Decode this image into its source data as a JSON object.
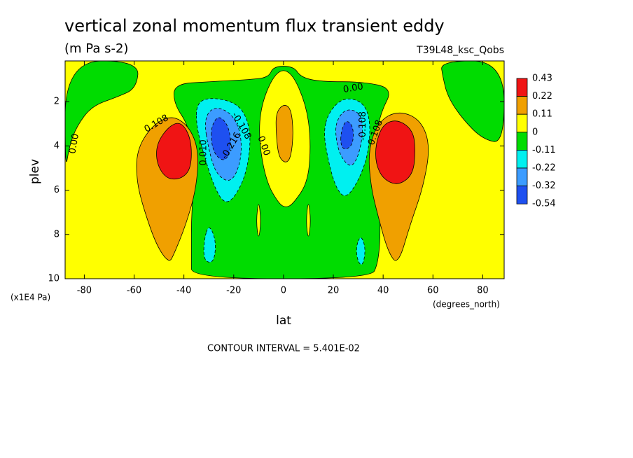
{
  "chart_data": {
    "type": "contour",
    "title": "vertical zonal momentum flux transient eddy",
    "subtitle": "(m Pa s-2)",
    "experiment": "T39L48_ksc_Qobs",
    "xlabel": "lat",
    "xunits": "(degrees_north)",
    "ylabel": "plev",
    "yunits": "(x1E4 Pa)",
    "footer": "CONTOUR INTERVAL = 5.401E-02",
    "xlim": [
      -87.7,
      88.6
    ],
    "ylim": [
      10,
      0.16
    ],
    "xticks": [
      -80,
      -60,
      -40,
      -20,
      0,
      20,
      40,
      60,
      80
    ],
    "yticks": [
      2,
      4,
      6,
      8,
      10
    ],
    "background_level": 0,
    "colorbar": {
      "levels": [
        0.43,
        0.22,
        0.11,
        0,
        -0.11,
        -0.22,
        -0.32,
        -0.54
      ],
      "colors": [
        "#f01414",
        "#f0a000",
        "#ffff00",
        "#00dc00",
        "#00f0f0",
        "#3c9cff",
        "#1e50f0"
      ]
    },
    "regions": [
      {
        "level": -0.11,
        "points": [
          [
            -87.7,
            0.16
          ],
          [
            -58,
            0.16
          ],
          [
            -59,
            1.4
          ],
          [
            -67,
            1.8
          ],
          [
            -77,
            2.2
          ],
          [
            -83,
            3.1
          ],
          [
            -86,
            4
          ],
          [
            -87.7,
            5.2
          ]
        ]
      },
      {
        "level": -0.11,
        "points": [
          [
            63,
            0.16
          ],
          [
            88.6,
            0.16
          ],
          [
            88.6,
            3.9
          ],
          [
            80,
            3.7
          ],
          [
            72,
            2.8
          ],
          [
            66,
            1.8
          ],
          [
            64,
            0.9
          ]
        ]
      },
      {
        "level": -0.11,
        "points": [
          [
            -44,
            1.2
          ],
          [
            -30,
            1.1
          ],
          [
            -13,
            1.0
          ],
          [
            -6,
            0.9
          ],
          [
            -4,
            0.4
          ],
          [
            4,
            0.4
          ],
          [
            7,
            0.9
          ],
          [
            15,
            1.1
          ],
          [
            32,
            1.1
          ],
          [
            44,
            1.4
          ],
          [
            39,
            2.5
          ],
          [
            37,
            3.7
          ],
          [
            38,
            5.6
          ],
          [
            39,
            7.8
          ],
          [
            38,
            9.3
          ],
          [
            35,
            10
          ],
          [
            -37,
            10
          ],
          [
            -37,
            9.1
          ],
          [
            -37,
            6.9
          ],
          [
            -35,
            5.0
          ],
          [
            -38,
            3.1
          ],
          [
            -44,
            2.1
          ]
        ]
      },
      {
        "level": 0,
        "points": [
          [
            -3,
            0.6
          ],
          [
            3,
            0.6
          ],
          [
            9,
            2.1
          ],
          [
            11,
            3.7
          ],
          [
            10,
            5.6
          ],
          [
            4,
            6.6
          ],
          [
            1,
            6.8
          ],
          [
            -2,
            6.6
          ],
          [
            -7,
            5.6
          ],
          [
            -10,
            3.7
          ],
          [
            -9,
            2.1
          ]
        ]
      },
      {
        "level": 0,
        "points": [
          [
            -10,
            6.4
          ],
          [
            -9,
            7.4
          ],
          [
            -10,
            8.3
          ],
          [
            -11,
            7.4
          ]
        ]
      },
      {
        "level": 0,
        "points": [
          [
            10,
            6.4
          ],
          [
            11,
            7.4
          ],
          [
            10,
            8.3
          ],
          [
            9,
            7.4
          ]
        ]
      },
      {
        "level": 0.11,
        "points": [
          [
            -3,
            2.5
          ],
          [
            0,
            2.1
          ],
          [
            3,
            2.3
          ],
          [
            4,
            3.4
          ],
          [
            3,
            4.5
          ],
          [
            1,
            4.8
          ],
          [
            -2,
            4.5
          ],
          [
            -3,
            3.4
          ]
        ]
      },
      {
        "level": 0.11,
        "points": [
          [
            -59,
            4.2
          ],
          [
            -53,
            3.1
          ],
          [
            -45,
            2.6
          ],
          [
            -38,
            3.1
          ],
          [
            -34,
            4.2
          ],
          [
            -35,
            5.9
          ],
          [
            -39,
            7.5
          ],
          [
            -44,
            8.9
          ],
          [
            -46,
            9.3
          ],
          [
            -51,
            8.5
          ],
          [
            -56,
            6.9
          ],
          [
            -59,
            5.6
          ]
        ]
      },
      {
        "level": 0.22,
        "points": [
          [
            -51,
            3.9
          ],
          [
            -46,
            3.1
          ],
          [
            -41,
            2.9
          ],
          [
            -37,
            3.7
          ],
          [
            -37,
            5.0
          ],
          [
            -41,
            5.5
          ],
          [
            -47,
            5.5
          ],
          [
            -51,
            4.8
          ]
        ]
      },
      {
        "level": 0.11,
        "points": [
          [
            34,
            4.2
          ],
          [
            38,
            2.9
          ],
          [
            46,
            2.4
          ],
          [
            55,
            2.8
          ],
          [
            59,
            4.0
          ],
          [
            56,
            5.9
          ],
          [
            51,
            7.5
          ],
          [
            46,
            9.4
          ],
          [
            42,
            8.8
          ],
          [
            38,
            7.2
          ],
          [
            35,
            5.8
          ]
        ]
      },
      {
        "level": 0.22,
        "points": [
          [
            37,
            3.9
          ],
          [
            40,
            3.0
          ],
          [
            46,
            2.8
          ],
          [
            52,
            3.3
          ],
          [
            53,
            4.2
          ],
          [
            52,
            5.3
          ],
          [
            46,
            5.8
          ],
          [
            40,
            5.5
          ],
          [
            37,
            4.8
          ]
        ]
      },
      {
        "level": -0.22,
        "points": [
          [
            -35,
            2.1
          ],
          [
            -30,
            1.8
          ],
          [
            -20,
            2.0
          ],
          [
            -15,
            2.6
          ],
          [
            -13,
            3.7
          ],
          [
            -15,
            5.3
          ],
          [
            -20,
            6.4
          ],
          [
            -24,
            6.6
          ],
          [
            -28,
            5.8
          ],
          [
            -32,
            4.4
          ],
          [
            -35,
            3.1
          ]
        ]
      },
      {
        "level": -0.32,
        "points": [
          [
            -32,
            2.8
          ],
          [
            -28,
            2.2
          ],
          [
            -21,
            2.5
          ],
          [
            -17,
            3.4
          ],
          [
            -17,
            4.7
          ],
          [
            -21,
            5.7
          ],
          [
            -27,
            5.3
          ],
          [
            -30,
            4.2
          ]
        ]
      },
      {
        "level": -0.54,
        "points": [
          [
            -29,
            3.1
          ],
          [
            -26,
            2.6
          ],
          [
            -22,
            3.1
          ],
          [
            -21,
            4.0
          ],
          [
            -23,
            4.7
          ],
          [
            -27,
            4.5
          ],
          [
            -29,
            3.9
          ]
        ]
      },
      {
        "level": -0.22,
        "points": [
          [
            -30,
            7.5
          ],
          [
            -27,
            8.3
          ],
          [
            -28,
            9.3
          ],
          [
            -32,
            9.2
          ],
          [
            -32,
            8.3
          ]
        ]
      },
      {
        "level": -0.22,
        "points": [
          [
            18,
            2.5
          ],
          [
            24,
            1.8
          ],
          [
            32,
            2.0
          ],
          [
            35,
            2.9
          ],
          [
            34,
            4.4
          ],
          [
            30,
            5.6
          ],
          [
            25,
            6.4
          ],
          [
            21,
            5.9
          ],
          [
            18,
            4.7
          ],
          [
            16,
            3.4
          ]
        ]
      },
      {
        "level": -0.32,
        "points": [
          [
            21,
            2.9
          ],
          [
            25,
            2.3
          ],
          [
            31,
            2.5
          ],
          [
            32,
            3.4
          ],
          [
            30,
            4.5
          ],
          [
            27,
            5.0
          ],
          [
            23,
            4.5
          ],
          [
            21,
            3.7
          ]
        ]
      },
      {
        "level": -0.54,
        "points": [
          [
            23,
            3.4
          ],
          [
            25,
            2.8
          ],
          [
            28,
            3.1
          ],
          [
            28,
            3.9
          ],
          [
            25,
            4.2
          ],
          [
            23,
            4.0
          ]
        ]
      },
      {
        "level": -0.22,
        "points": [
          [
            31,
            8.0
          ],
          [
            33,
            8.6
          ],
          [
            32,
            9.4
          ],
          [
            30,
            9.3
          ],
          [
            29,
            8.6
          ]
        ]
      }
    ],
    "contour_labels": [
      {
        "text": "0.00",
        "lat": -84,
        "plev": 3.9
      },
      {
        "text": "0.108",
        "lat": -51,
        "plev": 3.0
      },
      {
        "text": "0.010",
        "lat": -32,
        "plev": 4.3
      },
      {
        "text": "-0.108",
        "lat": -17,
        "plev": 3.1
      },
      {
        "text": "-0.216",
        "lat": -21,
        "plev": 4.0
      },
      {
        "text": "0.00",
        "lat": -8,
        "plev": 4.0
      },
      {
        "text": "0.00",
        "lat": 28,
        "plev": 1.4
      },
      {
        "text": "-0.108",
        "lat": 32,
        "plev": 3.1
      },
      {
        "text": "0.108",
        "lat": 37,
        "plev": 3.4
      }
    ]
  }
}
